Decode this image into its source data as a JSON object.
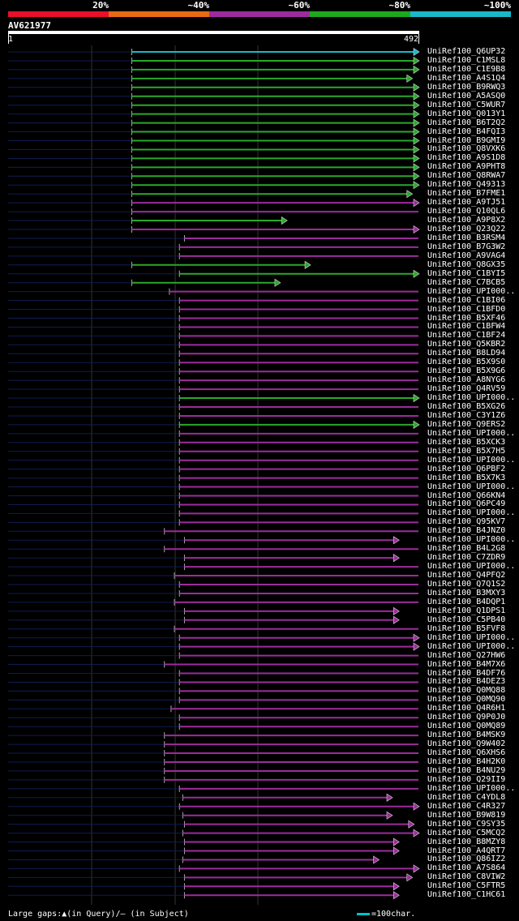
{
  "legend": {
    "labels": [
      "20%",
      "~40%",
      "~60%",
      "~80%",
      "~100%"
    ],
    "colors": [
      "#e8102a",
      "#e86a16",
      "#9c2c9c",
      "#1ea81e",
      "#1ab8c8"
    ]
  },
  "query": {
    "title": "AV621977",
    "start": "1",
    "end": "492",
    "length": 492
  },
  "colors": {
    "cyan": "#1ab8c8",
    "green": "#2aa82a",
    "purple": "#9c2c9c",
    "tail": "#101c50"
  },
  "hits": [
    {
      "label": "UniRef100_Q6UP32",
      "s": 149,
      "e": 492,
      "c": "cyan",
      "arrow": true
    },
    {
      "label": "UniRef100_C1MSL8",
      "s": 149,
      "e": 492,
      "c": "green",
      "arrow": true
    },
    {
      "label": "UniRef100_C1E9B8",
      "s": 149,
      "e": 492,
      "c": "green",
      "arrow": true
    },
    {
      "label": "UniRef100_A4S1Q4",
      "s": 149,
      "e": 484,
      "c": "green",
      "arrow": true
    },
    {
      "label": "UniRef100_B9RWQ3",
      "s": 149,
      "e": 492,
      "c": "green",
      "arrow": true
    },
    {
      "label": "UniRef100_A5ASQ0",
      "s": 149,
      "e": 492,
      "c": "green",
      "arrow": true
    },
    {
      "label": "UniRef100_C5WUR7",
      "s": 149,
      "e": 492,
      "c": "green",
      "arrow": true
    },
    {
      "label": "UniRef100_Q013Y1",
      "s": 149,
      "e": 492,
      "c": "green",
      "arrow": true
    },
    {
      "label": "UniRef100_B6T2Q2",
      "s": 149,
      "e": 492,
      "c": "green",
      "arrow": true
    },
    {
      "label": "UniRef100_B4FQI3",
      "s": 149,
      "e": 492,
      "c": "green",
      "arrow": true
    },
    {
      "label": "UniRef100_B9GMI9",
      "s": 149,
      "e": 492,
      "c": "green",
      "arrow": true
    },
    {
      "label": "UniRef100_Q8VXK6",
      "s": 149,
      "e": 492,
      "c": "green",
      "arrow": true
    },
    {
      "label": "UniRef100_A9S1D8",
      "s": 149,
      "e": 492,
      "c": "green",
      "arrow": true
    },
    {
      "label": "UniRef100_A9PHT8",
      "s": 149,
      "e": 492,
      "c": "green",
      "arrow": true
    },
    {
      "label": "UniRef100_Q8RWA7",
      "s": 149,
      "e": 492,
      "c": "green",
      "arrow": true
    },
    {
      "label": "UniRef100_Q49313",
      "s": 149,
      "e": 492,
      "c": "green",
      "arrow": true
    },
    {
      "label": "UniRef100_B7FME1",
      "s": 149,
      "e": 484,
      "c": "green",
      "arrow": true
    },
    {
      "label": "UniRef100_A9TJ51",
      "s": 149,
      "e": 492,
      "c": "purple",
      "arrow": true
    },
    {
      "label": "UniRef100_Q10QL6",
      "s": 149,
      "e": 492,
      "c": "purple",
      "arrow": false
    },
    {
      "label": "UniRef100_A9P8X2",
      "s": 149,
      "e": 334,
      "c": "green",
      "arrow": true
    },
    {
      "label": "UniRef100_Q23Q22",
      "s": 149,
      "e": 492,
      "c": "purple",
      "arrow": true
    },
    {
      "label": "UniRef100_B3RSM4",
      "s": 212,
      "e": 492,
      "c": "purple",
      "arrow": false
    },
    {
      "label": "UniRef100_B7G3W2",
      "s": 206,
      "e": 492,
      "c": "purple",
      "arrow": false
    },
    {
      "label": "UniRef100_A9VAG4",
      "s": 206,
      "e": 492,
      "c": "purple",
      "arrow": false
    },
    {
      "label": "UniRef100_Q8GX35",
      "s": 149,
      "e": 362,
      "c": "green",
      "arrow": true
    },
    {
      "label": "UniRef100_C1BYI5",
      "s": 206,
      "e": 492,
      "c": "green",
      "arrow": true
    },
    {
      "label": "UniRef100_C7BCB5",
      "s": 149,
      "e": 326,
      "c": "green",
      "arrow": true
    },
    {
      "label": "UniRef100_UPI000..",
      "s": 194,
      "e": 492,
      "c": "purple",
      "arrow": false
    },
    {
      "label": "UniRef100_C1BI06",
      "s": 206,
      "e": 492,
      "c": "purple",
      "arrow": false
    },
    {
      "label": "UniRef100_C1BFD0",
      "s": 206,
      "e": 492,
      "c": "purple",
      "arrow": false
    },
    {
      "label": "UniRef100_B5XF46",
      "s": 206,
      "e": 492,
      "c": "purple",
      "arrow": false
    },
    {
      "label": "UniRef100_C1BFW4",
      "s": 206,
      "e": 492,
      "c": "purple",
      "arrow": false
    },
    {
      "label": "UniRef100_C1BF24",
      "s": 206,
      "e": 492,
      "c": "purple",
      "arrow": false
    },
    {
      "label": "UniRef100_Q5KBR2",
      "s": 206,
      "e": 492,
      "c": "purple",
      "arrow": false
    },
    {
      "label": "UniRef100_B8LD94",
      "s": 206,
      "e": 492,
      "c": "purple",
      "arrow": false
    },
    {
      "label": "UniRef100_B5X9S0",
      "s": 206,
      "e": 492,
      "c": "purple",
      "arrow": false
    },
    {
      "label": "UniRef100_B5X9G6",
      "s": 206,
      "e": 492,
      "c": "purple",
      "arrow": false
    },
    {
      "label": "UniRef100_A8NYG6",
      "s": 206,
      "e": 492,
      "c": "purple",
      "arrow": false
    },
    {
      "label": "UniRef100_Q4RV59",
      "s": 206,
      "e": 492,
      "c": "purple",
      "arrow": false
    },
    {
      "label": "UniRef100_UPI000..",
      "s": 206,
      "e": 492,
      "c": "green",
      "arrow": true
    },
    {
      "label": "UniRef100_B5XG26",
      "s": 206,
      "e": 492,
      "c": "purple",
      "arrow": false
    },
    {
      "label": "UniRef100_C3Y1Z6",
      "s": 206,
      "e": 492,
      "c": "purple",
      "arrow": false
    },
    {
      "label": "UniRef100_Q9ERS2",
      "s": 206,
      "e": 492,
      "c": "green",
      "arrow": true
    },
    {
      "label": "UniRef100_UPI000..",
      "s": 206,
      "e": 492,
      "c": "purple",
      "arrow": false
    },
    {
      "label": "UniRef100_B5XCK3",
      "s": 206,
      "e": 492,
      "c": "purple",
      "arrow": false
    },
    {
      "label": "UniRef100_B5X7H5",
      "s": 206,
      "e": 492,
      "c": "purple",
      "arrow": false
    },
    {
      "label": "UniRef100_UPI000..",
      "s": 206,
      "e": 492,
      "c": "purple",
      "arrow": false
    },
    {
      "label": "UniRef100_Q6PBF2",
      "s": 206,
      "e": 492,
      "c": "purple",
      "arrow": false
    },
    {
      "label": "UniRef100_B5X7K3",
      "s": 206,
      "e": 492,
      "c": "purple",
      "arrow": false
    },
    {
      "label": "UniRef100_UPI000..",
      "s": 206,
      "e": 492,
      "c": "purple",
      "arrow": false
    },
    {
      "label": "UniRef100_Q66KN4",
      "s": 206,
      "e": 492,
      "c": "purple",
      "arrow": false
    },
    {
      "label": "UniRef100_Q6PC49",
      "s": 206,
      "e": 492,
      "c": "purple",
      "arrow": false
    },
    {
      "label": "UniRef100_UPI000..",
      "s": 206,
      "e": 492,
      "c": "purple",
      "arrow": false
    },
    {
      "label": "UniRef100_Q95KV7",
      "s": 206,
      "e": 492,
      "c": "purple",
      "arrow": false
    },
    {
      "label": "UniRef100_B4JNZ0",
      "s": 188,
      "e": 492,
      "c": "purple",
      "arrow": false
    },
    {
      "label": "UniRef100_UPI000..",
      "s": 212,
      "e": 468,
      "c": "purple",
      "arrow": true
    },
    {
      "label": "UniRef100_B4L2G8",
      "s": 188,
      "e": 492,
      "c": "purple",
      "arrow": false
    },
    {
      "label": "UniRef100_C7ZDR9",
      "s": 212,
      "e": 468,
      "c": "purple",
      "arrow": true
    },
    {
      "label": "UniRef100_UPI000..",
      "s": 212,
      "e": 492,
      "c": "purple",
      "arrow": false
    },
    {
      "label": "UniRef100_Q4PFQ2",
      "s": 200,
      "e": 492,
      "c": "purple",
      "arrow": false
    },
    {
      "label": "UniRef100_Q7Q1S2",
      "s": 206,
      "e": 492,
      "c": "purple",
      "arrow": false
    },
    {
      "label": "UniRef100_B3MXY3",
      "s": 206,
      "e": 492,
      "c": "purple",
      "arrow": false
    },
    {
      "label": "UniRef100_B4DQP1",
      "s": 200,
      "e": 492,
      "c": "purple",
      "arrow": false
    },
    {
      "label": "UniRef100_Q1DPS1",
      "s": 212,
      "e": 468,
      "c": "purple",
      "arrow": true
    },
    {
      "label": "UniRef100_C5PB40",
      "s": 212,
      "e": 468,
      "c": "purple",
      "arrow": true
    },
    {
      "label": "UniRef100_B5FVF8",
      "s": 200,
      "e": 492,
      "c": "purple",
      "arrow": false
    },
    {
      "label": "UniRef100_UPI000..",
      "s": 206,
      "e": 492,
      "c": "purple",
      "arrow": true
    },
    {
      "label": "UniRef100_UPI000..",
      "s": 206,
      "e": 492,
      "c": "purple",
      "arrow": true
    },
    {
      "label": "UniRef100_Q27HW6",
      "s": 206,
      "e": 492,
      "c": "purple",
      "arrow": false
    },
    {
      "label": "UniRef100_B4M7X6",
      "s": 188,
      "e": 492,
      "c": "purple",
      "arrow": false
    },
    {
      "label": "UniRef100_B4DF76",
      "s": 206,
      "e": 492,
      "c": "purple",
      "arrow": false
    },
    {
      "label": "UniRef100_B4DEZ3",
      "s": 206,
      "e": 492,
      "c": "purple",
      "arrow": false
    },
    {
      "label": "UniRef100_Q0MQ88",
      "s": 206,
      "e": 492,
      "c": "purple",
      "arrow": false
    },
    {
      "label": "UniRef100_Q0MQ90",
      "s": 206,
      "e": 492,
      "c": "purple",
      "arrow": false
    },
    {
      "label": "UniRef100_Q4R6H1",
      "s": 196,
      "e": 492,
      "c": "purple",
      "arrow": false
    },
    {
      "label": "UniRef100_Q9P0J0",
      "s": 206,
      "e": 492,
      "c": "purple",
      "arrow": false
    },
    {
      "label": "UniRef100_Q0MQ89",
      "s": 206,
      "e": 492,
      "c": "purple",
      "arrow": false
    },
    {
      "label": "UniRef100_B4MSK9",
      "s": 188,
      "e": 492,
      "c": "purple",
      "arrow": false
    },
    {
      "label": "UniRef100_Q9W402",
      "s": 188,
      "e": 492,
      "c": "purple",
      "arrow": false
    },
    {
      "label": "UniRef100_Q6XHS6",
      "s": 188,
      "e": 492,
      "c": "purple",
      "arrow": false
    },
    {
      "label": "UniRef100_B4H2K0",
      "s": 188,
      "e": 492,
      "c": "purple",
      "arrow": false
    },
    {
      "label": "UniRef100_B4NU29",
      "s": 188,
      "e": 492,
      "c": "purple",
      "arrow": false
    },
    {
      "label": "UniRef100_Q29II9",
      "s": 188,
      "e": 492,
      "c": "purple",
      "arrow": false
    },
    {
      "label": "UniRef100_UPI000..",
      "s": 206,
      "e": 492,
      "c": "purple",
      "arrow": false
    },
    {
      "label": "UniRef100_C4YDL8",
      "s": 210,
      "e": 460,
      "c": "purple",
      "arrow": true
    },
    {
      "label": "UniRef100_C4R327",
      "s": 206,
      "e": 492,
      "c": "purple",
      "arrow": true
    },
    {
      "label": "UniRef100_B9W819",
      "s": 210,
      "e": 460,
      "c": "purple",
      "arrow": true
    },
    {
      "label": "UniRef100_C9SY35",
      "s": 212,
      "e": 486,
      "c": "purple",
      "arrow": true
    },
    {
      "label": "UniRef100_C5MCQ2",
      "s": 210,
      "e": 492,
      "c": "purple",
      "arrow": true
    },
    {
      "label": "UniRef100_B8MZY8",
      "s": 212,
      "e": 468,
      "c": "purple",
      "arrow": true
    },
    {
      "label": "UniRef100_A4QRT7",
      "s": 212,
      "e": 468,
      "c": "purple",
      "arrow": true
    },
    {
      "label": "UniRef100_Q86IZ2",
      "s": 210,
      "e": 444,
      "c": "purple",
      "arrow": true
    },
    {
      "label": "UniRef100_A7S864",
      "s": 206,
      "e": 492,
      "c": "purple",
      "arrow": true
    },
    {
      "label": "UniRef100_C8VIW2",
      "s": 212,
      "e": 484,
      "c": "purple",
      "arrow": true
    },
    {
      "label": "UniRef100_C5FTR5",
      "s": 212,
      "e": 468,
      "c": "purple",
      "arrow": true
    },
    {
      "label": "UniRef100_C1HC61",
      "s": 212,
      "e": 468,
      "c": "purple",
      "arrow": true
    }
  ],
  "footer": {
    "text": "Large gaps:▲(in Query)/– (in Subject)",
    "scale": "=100char."
  }
}
